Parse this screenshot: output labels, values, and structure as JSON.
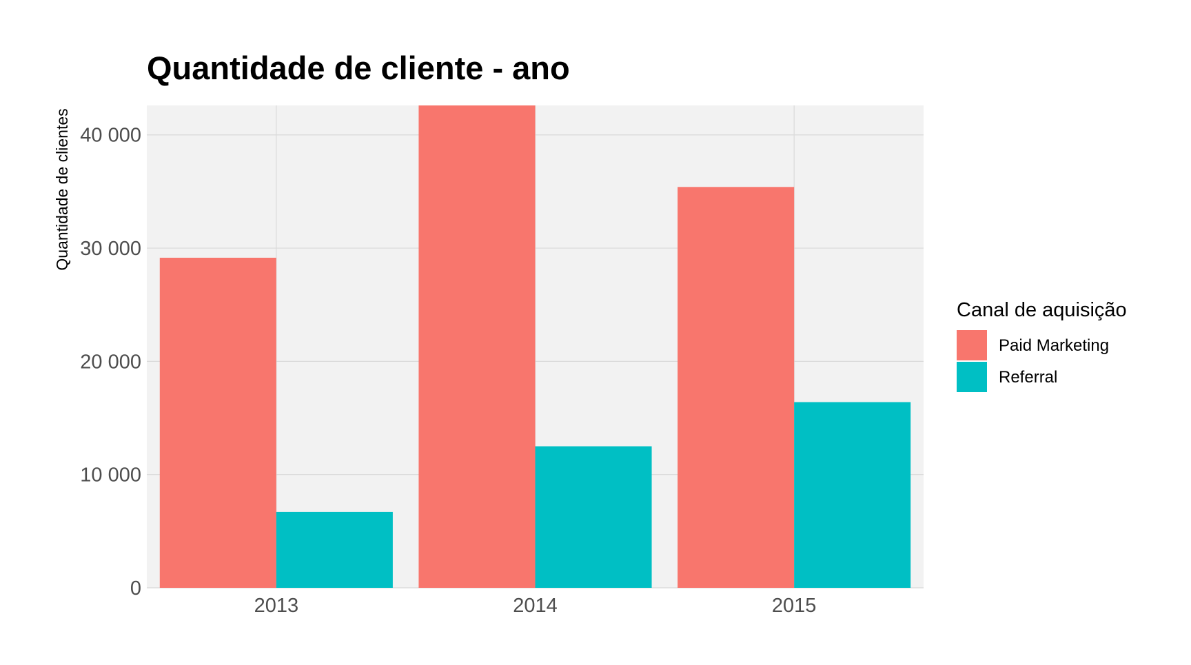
{
  "chart_data": {
    "type": "bar",
    "title": "Quantidade de cliente - ano",
    "xlabel": "",
    "ylabel": "Quantidade de clientes",
    "categories": [
      "2013",
      "2014",
      "2015"
    ],
    "series": [
      {
        "name": "Paid Marketing",
        "color": "#F8766D",
        "values": [
          29150,
          42600,
          35400
        ]
      },
      {
        "name": "Referral",
        "color": "#00BFC4",
        "values": [
          6700,
          12500,
          16400
        ]
      }
    ],
    "ylim": [
      0,
      42600
    ],
    "yticks": [
      0,
      10000,
      20000,
      30000,
      40000
    ],
    "ytick_labels": [
      "0",
      "10 000",
      "20 000",
      "30 000",
      "40 000"
    ],
    "grid": true,
    "legend": {
      "title": "Canal de aquisição",
      "placement": "right"
    },
    "panel_background": "#F2F2F2",
    "grid_color": "#D9D9D9"
  }
}
